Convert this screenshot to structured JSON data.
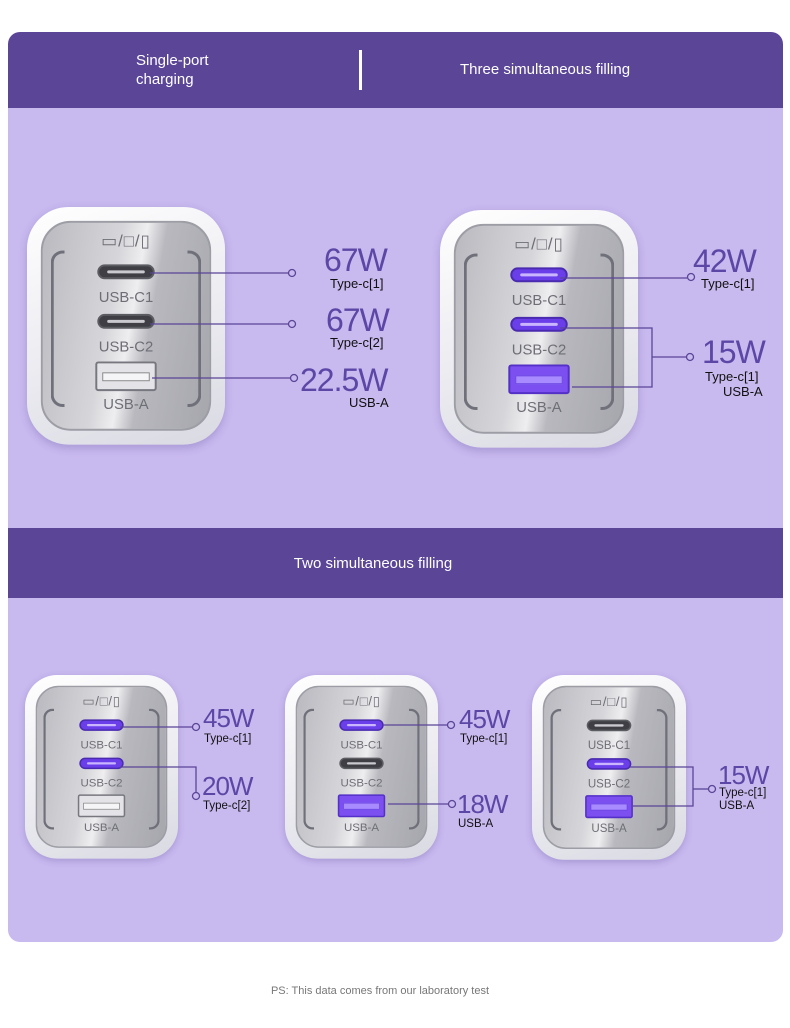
{
  "headers": {
    "single_port": "Single-port\ncharging",
    "three": "Three simultaneous filling",
    "two": "Two simultaneous filling"
  },
  "colors": {
    "band": "#5a4597",
    "panel": "#c8b9ef",
    "accent_text": "#5d47a6",
    "active_port": "#6a3ee8"
  },
  "port_labels": {
    "c1": "USB-C1",
    "c2": "USB-C2",
    "a": "USB-A"
  },
  "device_icons": "▭/□/▯",
  "chargers": [
    {
      "id": "single",
      "active": {
        "c1": false,
        "c2": false,
        "a": false
      }
    },
    {
      "id": "three",
      "active": {
        "c1": true,
        "c2": true,
        "a": true
      }
    },
    {
      "id": "two-c1-c2",
      "active": {
        "c1": true,
        "c2": true,
        "a": false
      }
    },
    {
      "id": "two-c1-a",
      "active": {
        "c1": true,
        "c2": false,
        "a": true
      }
    },
    {
      "id": "two-c2-a",
      "active": {
        "c1": false,
        "c2": true,
        "a": true
      }
    }
  ],
  "callouts": {
    "single": [
      {
        "watt": "67W",
        "sub": "Type-c[1]"
      },
      {
        "watt": "67W",
        "sub": "Type-c[2]"
      },
      {
        "watt": "22.5W",
        "sub": "USB-A"
      }
    ],
    "three": [
      {
        "watt": "42W",
        "sub": "Type-c[1]"
      },
      {
        "watt": "15W",
        "sub": "Type-c[1]",
        "sub2": "USB-A"
      }
    ],
    "two_a": [
      {
        "watt": "45W",
        "sub": "Type-c[1]"
      },
      {
        "watt": "20W",
        "sub": "Type-c[2]"
      }
    ],
    "two_b": [
      {
        "watt": "45W",
        "sub": "Type-c[1]"
      },
      {
        "watt": "18W",
        "sub": "USB-A"
      }
    ],
    "two_c": [
      {
        "watt": "15W",
        "sub": "Type-c[1]",
        "sub2": "USB-A"
      }
    ]
  },
  "footer": "PS: This data comes from our laboratory test"
}
